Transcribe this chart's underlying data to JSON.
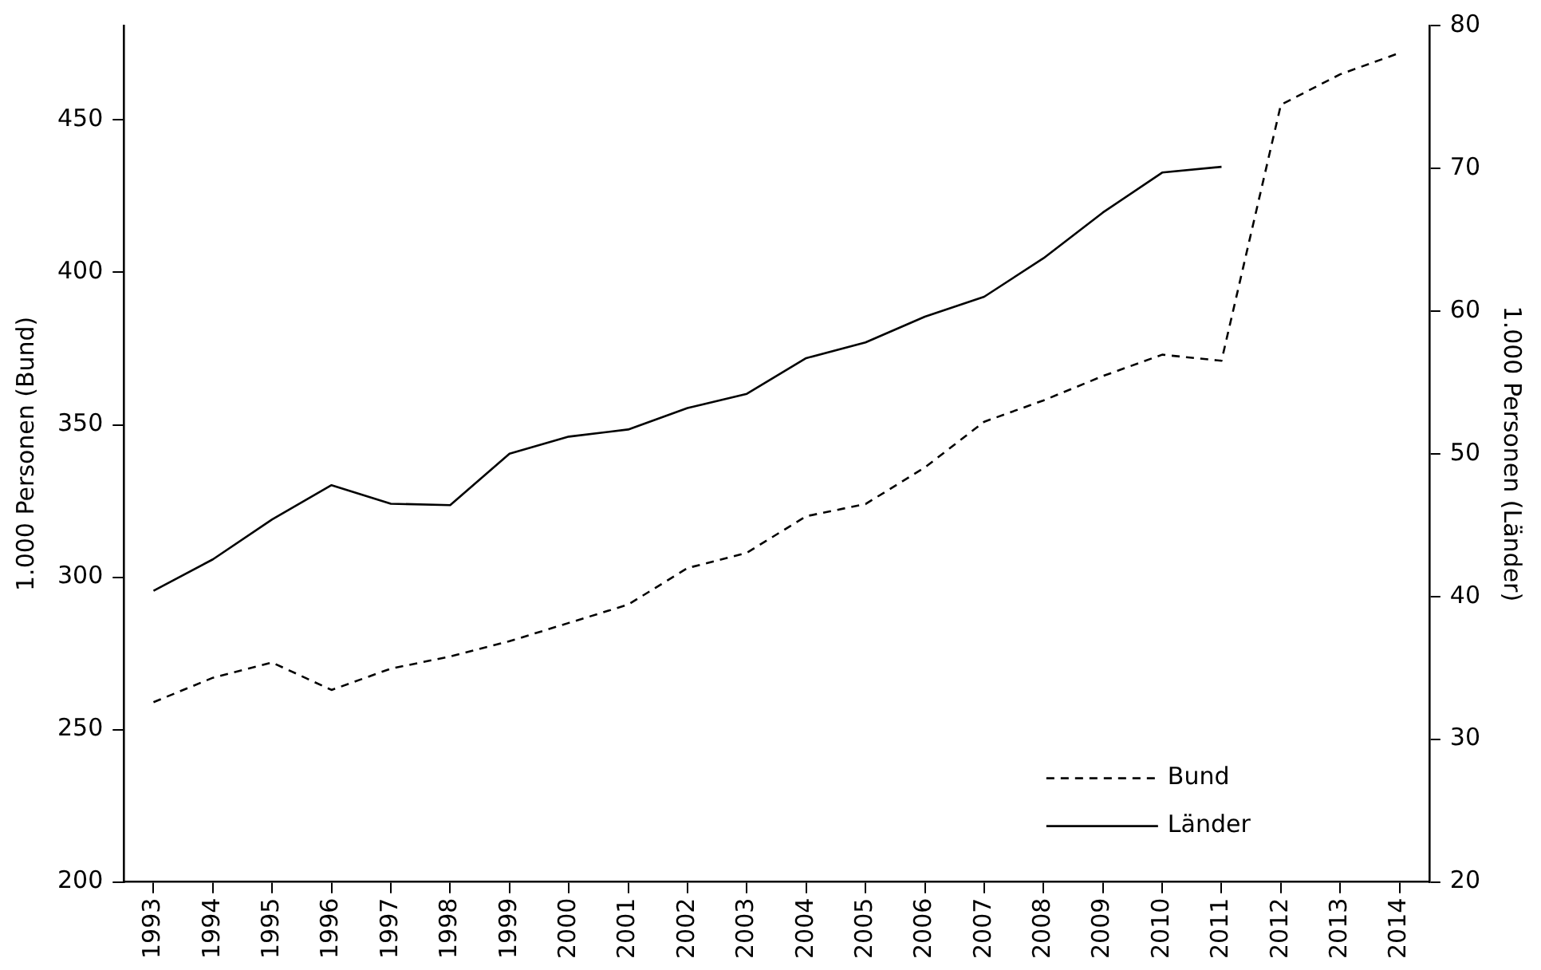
{
  "chart_data": {
    "type": "line",
    "ylabel": "1.000 Personen (Bund)",
    "y2label": "1.000 Personen (Länder)",
    "categories": [
      "1993",
      "1994",
      "1995",
      "1996",
      "1997",
      "1998",
      "1999",
      "2000",
      "2001",
      "2002",
      "2003",
      "2004",
      "2005",
      "2006",
      "2007",
      "2008",
      "2009",
      "2010",
      "2011",
      "2012",
      "2013",
      "2014"
    ],
    "series": [
      {
        "name": "Bund",
        "color": "#000000",
        "line_style": "dashed",
        "axis": "y",
        "values": [
          259,
          267,
          272,
          263,
          270,
          274,
          279,
          285,
          291,
          303,
          308,
          320,
          324,
          336,
          351,
          358,
          366,
          373,
          371,
          455,
          465,
          472
        ]
      },
      {
        "name": "Länder",
        "color": "#000000",
        "line_style": "solid",
        "axis": "y2",
        "values": [
          40.4,
          42.6,
          45.4,
          47.8,
          46.5,
          46.4,
          50.0,
          51.2,
          51.7,
          53.2,
          54.2,
          56.7,
          57.8,
          59.6,
          61.0,
          63.7,
          66.9,
          69.7,
          70.1,
          null,
          null,
          null
        ]
      }
    ],
    "ylim": [
      200,
      481
    ],
    "yticks": [
      200,
      250,
      300,
      350,
      400,
      450
    ],
    "y2lim": [
      20,
      80
    ],
    "y2ticks": [
      20,
      30,
      40,
      50,
      60,
      70,
      80
    ],
    "grid": false,
    "legend": "bottom right",
    "marker": "none"
  }
}
